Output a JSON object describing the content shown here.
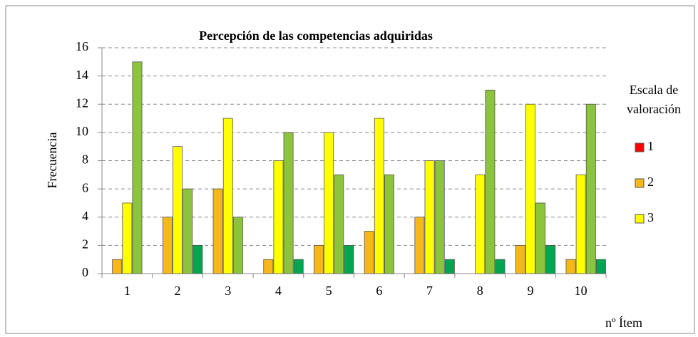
{
  "chart_data": {
    "type": "bar",
    "title": "Percepción de las competencias adquiridas",
    "y_label": "Frecuencia",
    "x_label": "nº  Ítem",
    "legend_title": [
      "Escala de",
      "valoración"
    ],
    "categories": [
      "1",
      "2",
      "3",
      "4",
      "5",
      "6",
      "7",
      "8",
      "9",
      "10"
    ],
    "series": [
      {
        "name": "1",
        "color": "#ff0000",
        "values": [
          0,
          0,
          0,
          0,
          0,
          0,
          0,
          0,
          0,
          0
        ]
      },
      {
        "name": "2",
        "color": "#f7b718",
        "values": [
          1,
          4,
          6,
          1,
          2,
          3,
          4,
          0,
          2,
          1
        ]
      },
      {
        "name": "3",
        "color": "#ffff00",
        "values": [
          5,
          9,
          11,
          8,
          10,
          11,
          8,
          7,
          12,
          7
        ]
      },
      {
        "color": "#8cc43c",
        "values": [
          15,
          6,
          4,
          10,
          7,
          7,
          8,
          13,
          5,
          12
        ]
      },
      {
        "color": "#00a550",
        "values": [
          0,
          2,
          0,
          1,
          2,
          0,
          1,
          1,
          2,
          1
        ]
      }
    ],
    "ylim": [
      0,
      16
    ],
    "yticks": [
      0,
      2,
      4,
      6,
      8,
      10,
      12,
      14,
      16
    ],
    "grid": true
  }
}
